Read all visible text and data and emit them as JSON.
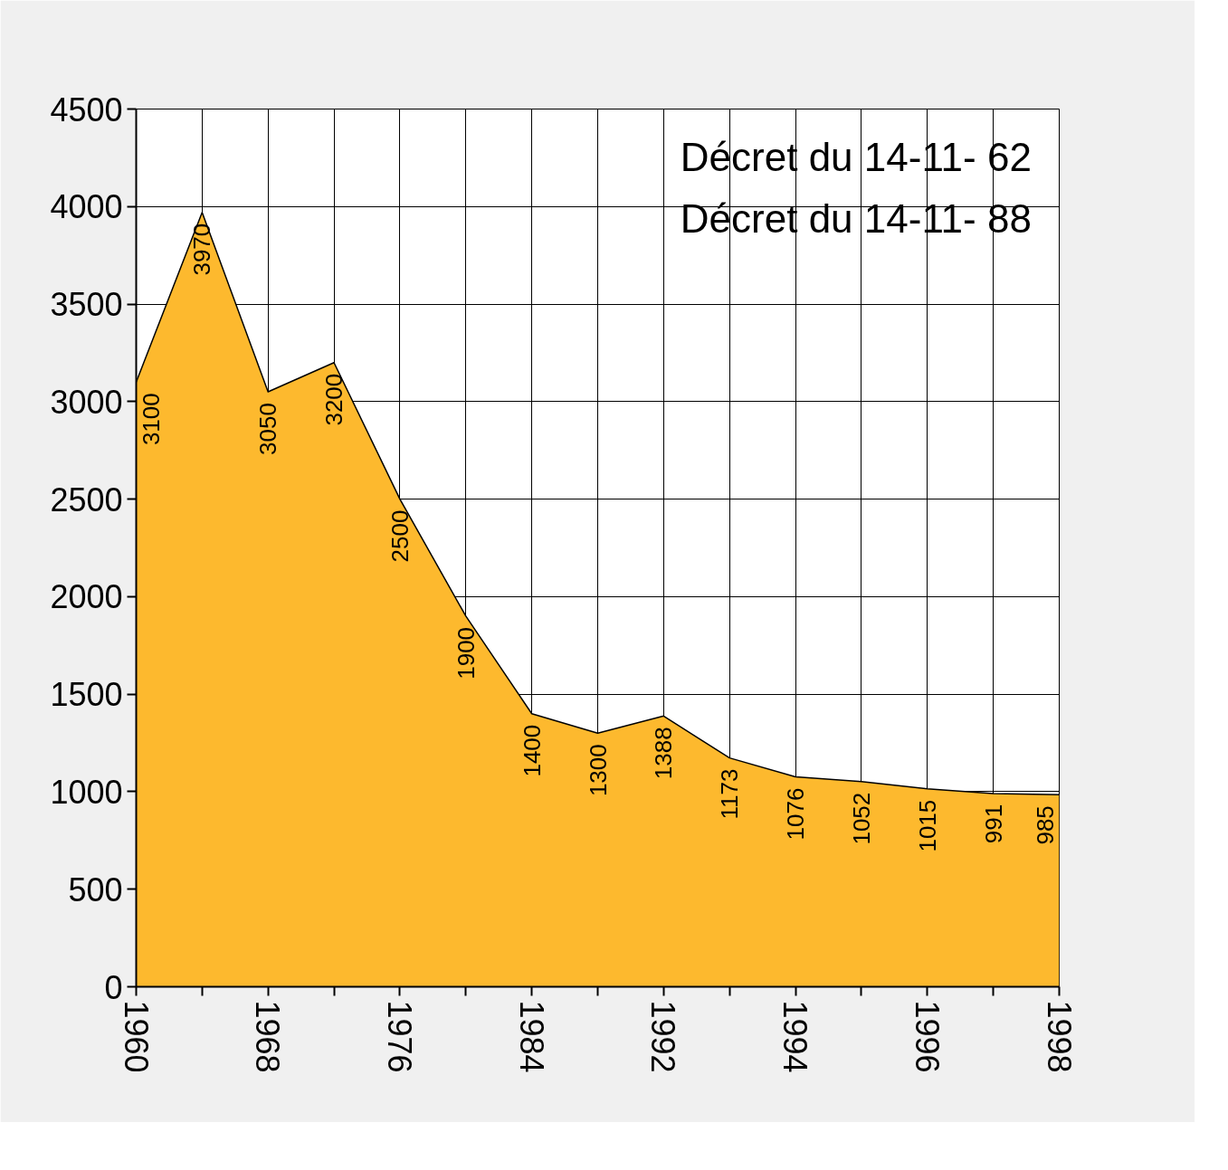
{
  "chart_data": {
    "type": "area",
    "categories": [
      "1960",
      null,
      "1968",
      null,
      "1976",
      null,
      "1984",
      null,
      "1992",
      null,
      "1994",
      null,
      "1996",
      null,
      "1998"
    ],
    "values": [
      3100,
      3970,
      3050,
      3200,
      2500,
      1900,
      1400,
      1300,
      1388,
      1173,
      1076,
      1052,
      1015,
      991,
      985
    ],
    "color": "#fdb92e",
    "ylim": [
      0,
      4500
    ],
    "yticks": [
      0,
      500,
      1000,
      1500,
      2000,
      2500,
      3000,
      3500,
      4000,
      4500
    ],
    "grid": true,
    "data_labels": true,
    "annotations": [
      "Décret du 14-11- 62",
      "Décret du 14-11- 88"
    ]
  }
}
